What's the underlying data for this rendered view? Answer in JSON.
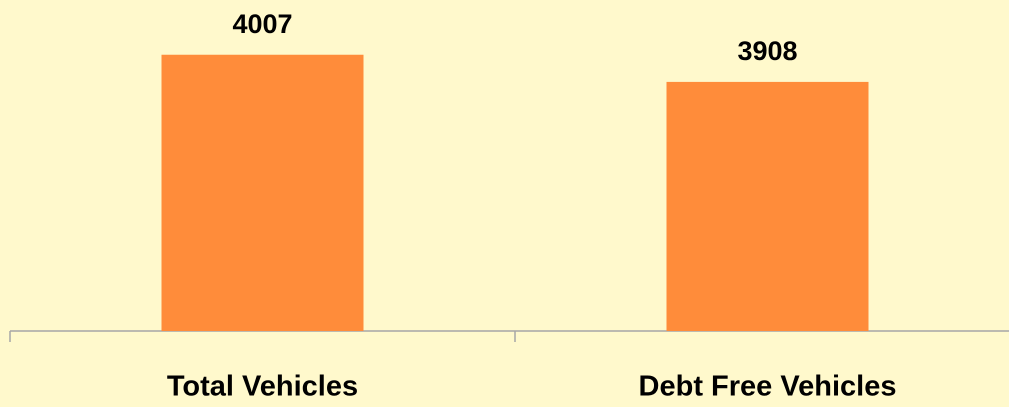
{
  "chart_data": {
    "type": "bar",
    "categories": [
      "Total Vehicles",
      "Debt Free Vehicles"
    ],
    "values": [
      4007,
      3908
    ],
    "color": "#ff8c3a",
    "ylim": [
      3000,
      4130
    ]
  }
}
